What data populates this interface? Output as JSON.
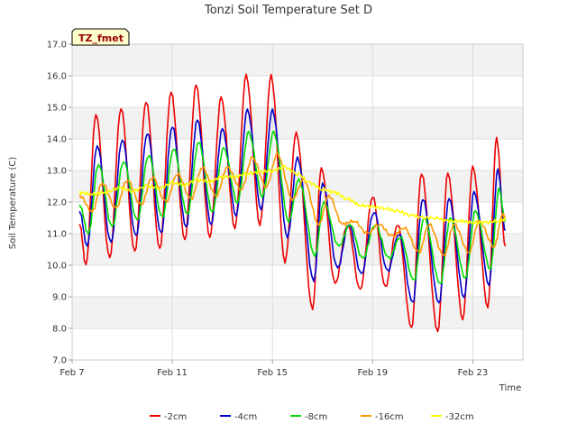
{
  "chart_data": {
    "type": "line",
    "title": "Tonzi Soil Temperature Set D",
    "xlabel": "Time",
    "ylabel": "Soil Temperature (C)",
    "site_label": "TZ_fmet",
    "xlim": [
      7.0,
      25.0
    ],
    "ylim": [
      7.0,
      17.0
    ],
    "x_ticks": [
      {
        "value": 7,
        "label": "Feb 7"
      },
      {
        "value": 11,
        "label": "Feb 11"
      },
      {
        "value": 15,
        "label": "Feb 15"
      },
      {
        "value": 19,
        "label": "Feb 19"
      },
      {
        "value": 23,
        "label": "Feb 23"
      }
    ],
    "y_ticks": [
      7.0,
      8.0,
      9.0,
      10.0,
      11.0,
      12.0,
      13.0,
      14.0,
      15.0,
      16.0,
      17.0
    ],
    "grid": true,
    "legend_position": "bottom",
    "series": [
      {
        "name": "-2cm",
        "color": "#ee0000",
        "x": [
          7.3,
          7.55,
          7.95,
          8.5,
          8.95,
          9.5,
          9.95,
          10.5,
          10.95,
          11.5,
          11.95,
          12.5,
          12.95,
          13.5,
          13.95,
          14.5,
          14.95,
          15.5,
          15.95,
          16.6,
          16.95,
          17.5,
          18.0,
          18.5,
          19.0,
          19.5,
          20.0,
          20.55,
          20.95,
          21.6,
          22.0,
          22.6,
          23.0,
          23.6,
          23.95,
          24.3
        ],
        "y": [
          11.3,
          10.0,
          14.8,
          10.2,
          15.0,
          10.4,
          15.2,
          10.5,
          15.5,
          10.8,
          15.7,
          10.9,
          15.3,
          11.2,
          16.0,
          11.3,
          16.0,
          10.1,
          14.2,
          8.6,
          13.1,
          9.4,
          11.3,
          9.2,
          12.2,
          9.3,
          11.3,
          8.0,
          12.9,
          7.9,
          12.9,
          8.3,
          13.1,
          8.7,
          14.0,
          10.6
        ]
      },
      {
        "name": "-4cm",
        "color": "#0000cc",
        "x": [
          7.3,
          7.6,
          8.0,
          8.55,
          9.0,
          9.55,
          10.0,
          10.55,
          11.0,
          11.55,
          12.0,
          12.55,
          13.0,
          13.55,
          14.0,
          14.55,
          15.0,
          15.6,
          16.0,
          16.65,
          17.0,
          17.6,
          18.05,
          18.55,
          19.05,
          19.6,
          20.05,
          20.6,
          21.0,
          21.65,
          22.05,
          22.65,
          23.05,
          23.65,
          24.0,
          24.3
        ],
        "y": [
          11.7,
          10.6,
          13.8,
          10.7,
          14.0,
          10.9,
          14.2,
          11.0,
          14.4,
          11.2,
          14.6,
          11.3,
          14.3,
          11.6,
          14.9,
          11.8,
          14.9,
          10.9,
          13.4,
          9.5,
          12.6,
          9.9,
          11.3,
          9.7,
          11.7,
          9.8,
          11.0,
          8.8,
          12.1,
          8.8,
          12.1,
          9.0,
          12.3,
          9.4,
          13.0,
          11.1
        ]
      },
      {
        "name": "-8cm",
        "color": "#00dd00",
        "x": [
          7.3,
          7.65,
          8.05,
          8.6,
          9.05,
          9.6,
          10.05,
          10.6,
          11.05,
          11.6,
          12.05,
          12.6,
          13.05,
          13.6,
          14.05,
          14.6,
          15.05,
          15.65,
          16.05,
          16.7,
          17.05,
          17.65,
          18.1,
          18.6,
          19.1,
          19.65,
          20.1,
          20.65,
          21.05,
          21.7,
          22.1,
          22.7,
          23.1,
          23.7,
          24.05,
          24.3
        ],
        "y": [
          11.9,
          11.0,
          13.2,
          11.2,
          13.3,
          11.4,
          13.5,
          11.5,
          13.7,
          11.6,
          13.9,
          11.7,
          13.7,
          12.0,
          14.2,
          12.2,
          14.2,
          11.4,
          12.7,
          10.3,
          12.0,
          10.6,
          11.3,
          10.2,
          11.3,
          10.2,
          10.9,
          9.5,
          11.5,
          9.4,
          11.5,
          9.6,
          11.7,
          9.9,
          12.4,
          11.4
        ]
      },
      {
        "name": "-16cm",
        "color": "#ff9900",
        "x": [
          7.3,
          7.8,
          8.2,
          8.75,
          9.2,
          9.75,
          10.2,
          10.75,
          11.2,
          11.75,
          12.2,
          12.75,
          13.2,
          13.75,
          14.2,
          14.75,
          15.2,
          15.8,
          16.25,
          16.85,
          17.25,
          17.8,
          18.25,
          18.8,
          19.25,
          19.8,
          20.25,
          20.85,
          21.25,
          21.85,
          22.25,
          22.85,
          23.25,
          23.85,
          24.2,
          24.3
        ],
        "y": [
          12.2,
          11.7,
          12.6,
          11.8,
          12.7,
          11.9,
          12.8,
          12.0,
          12.9,
          12.1,
          13.1,
          12.2,
          13.1,
          12.4,
          13.4,
          12.5,
          13.5,
          12.1,
          12.7,
          11.3,
          12.2,
          11.3,
          11.4,
          11.0,
          11.3,
          10.9,
          11.2,
          10.4,
          11.3,
          10.3,
          11.3,
          10.4,
          11.4,
          10.6,
          11.6,
          11.5
        ]
      },
      {
        "name": "-32cm",
        "color": "#ffff00",
        "x": [
          7.3,
          7.8,
          8.3,
          8.9,
          9.4,
          10.0,
          10.5,
          11.0,
          11.5,
          12.0,
          12.5,
          13.0,
          13.5,
          14.0,
          14.5,
          15.0,
          15.5,
          16.0,
          16.5,
          17.0,
          17.5,
          18.0,
          18.5,
          19.0,
          19.5,
          20.0,
          20.5,
          21.0,
          21.5,
          22.0,
          22.5,
          23.0,
          23.5,
          24.0,
          24.3
        ],
        "y": [
          12.3,
          12.25,
          12.3,
          12.45,
          12.35,
          12.5,
          12.45,
          12.6,
          12.55,
          12.7,
          12.65,
          12.8,
          12.8,
          12.9,
          12.95,
          13.0,
          13.1,
          12.9,
          12.6,
          12.4,
          12.3,
          12.1,
          11.9,
          11.85,
          11.8,
          11.7,
          11.6,
          11.5,
          11.5,
          11.4,
          11.4,
          11.35,
          11.35,
          11.4,
          11.45
        ]
      }
    ]
  }
}
